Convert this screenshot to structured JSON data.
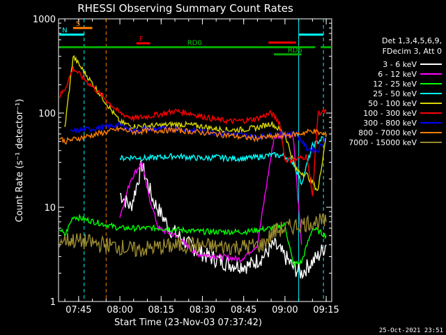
{
  "chart_data": {
    "type": "line",
    "title": "RHESSI Observing Summary Count Rates",
    "xlabel": "Start Time (23-Nov-03 07:37:42)",
    "ylabel": "Count Rate (s⁻¹ detector⁻¹)",
    "y_scale": "log",
    "ylim": [
      1,
      1000
    ],
    "xlim": [
      "07:37:42",
      "09:17:00"
    ],
    "x_ticks": [
      "07:45",
      "08:00",
      "08:15",
      "08:30",
      "08:45",
      "09:00",
      "09:15"
    ],
    "y_ticks": [
      "1",
      "10",
      "100",
      "1000"
    ],
    "grid": false,
    "legend_position": "right",
    "legend_header": [
      "Det 1,3,4,5,6,9,",
      "FDecim 3, Att 0"
    ],
    "footer_timestamp": "25-Oct-2021 23:51",
    "x_minutes_of_ticks": [
      7.3,
      22.3,
      37.3,
      52.3,
      67.3,
      82.3,
      97.3
    ],
    "series": [
      {
        "name": "3 - 6 keV",
        "color": "#ffffff",
        "x": [
          "08:00",
          "08:04",
          "08:08",
          "08:12",
          "08:18",
          "08:25",
          "08:32",
          "08:40",
          "08:47",
          "08:52",
          "08:56",
          "09:00",
          "09:03",
          "09:06",
          "09:09",
          "09:12",
          "09:15"
        ],
        "values": [
          14,
          10,
          28,
          12,
          6,
          4,
          3,
          2.5,
          2.4,
          3,
          4,
          3,
          2.3,
          2,
          2.5,
          3,
          4
        ]
      },
      {
        "name": "6 - 12 keV",
        "color": "#ff00ff",
        "x": [
          "08:00",
          "08:04",
          "08:08",
          "08:10",
          "08:14",
          "08:20",
          "08:28",
          "08:36",
          "08:44",
          "08:50",
          "08:53",
          "08:56",
          "09:00",
          "09:03",
          "09:06"
        ],
        "values": [
          8,
          20,
          30,
          15,
          6,
          5,
          3.2,
          3,
          2.8,
          4,
          15,
          55,
          60,
          58,
          4
        ]
      },
      {
        "name": "12 - 25 keV",
        "color": "#00ff00",
        "x": [
          "07:38",
          "07:40",
          "07:43",
          "08:00",
          "08:15",
          "08:30",
          "08:45",
          "08:55",
          "09:00",
          "09:03",
          "09:06",
          "09:10",
          "09:15"
        ],
        "values": [
          6,
          5,
          8,
          6,
          6,
          5.5,
          5.5,
          6,
          6.5,
          2.5,
          2.6,
          6,
          5
        ]
      },
      {
        "name": "25 - 50 keV",
        "color": "#00ffff",
        "x": [
          "08:00",
          "08:05",
          "08:10",
          "08:15",
          "08:20",
          "08:25",
          "08:30",
          "08:35",
          "08:40",
          "08:45",
          "08:50",
          "08:55",
          "09:00",
          "09:03",
          "09:06",
          "09:10",
          "09:14"
        ],
        "values": [
          33,
          34,
          33,
          34,
          35,
          34,
          33,
          34,
          33,
          33,
          34,
          36,
          35,
          30,
          18,
          45,
          55
        ]
      },
      {
        "name": "50 - 100 keV",
        "color": "#d8d800",
        "x": [
          "07:40",
          "07:43",
          "08:00",
          "08:05",
          "08:10",
          "08:15",
          "08:20",
          "08:25",
          "08:30",
          "08:35",
          "08:40",
          "08:45",
          "08:50",
          "08:55",
          "09:00",
          "09:04",
          "09:08",
          "09:12",
          "09:15"
        ],
        "values": [
          70,
          400,
          80,
          72,
          73,
          74,
          76,
          75,
          72,
          68,
          66,
          67,
          70,
          78,
          60,
          25,
          22,
          15,
          60
        ]
      },
      {
        "name": "100 - 300 keV",
        "color": "#ff0000",
        "x": [
          "07:38",
          "07:40",
          "07:43",
          "08:00",
          "08:05",
          "08:10",
          "08:15",
          "08:20",
          "08:25",
          "08:30",
          "08:35",
          "08:40",
          "08:45",
          "08:50",
          "08:55",
          "08:58",
          "09:00",
          "09:04",
          "09:08",
          "09:10",
          "09:12",
          "09:15"
        ],
        "values": [
          150,
          180,
          300,
          100,
          88,
          92,
          98,
          105,
          100,
          92,
          85,
          82,
          83,
          88,
          100,
          80,
          32,
          32,
          35,
          13,
          100,
          105
        ]
      },
      {
        "name": "300 - 800 keV",
        "color": "#0000ff",
        "x": [
          "07:42",
          "07:43",
          "08:00",
          "08:05",
          "08:10",
          "08:20",
          "08:30",
          "08:40",
          "08:45",
          "08:50",
          "08:55",
          "09:00",
          "09:04",
          "09:08",
          "09:12",
          "09:15"
        ],
        "values": [
          62,
          64,
          75,
          65,
          68,
          68,
          64,
          60,
          58,
          56,
          58,
          60,
          62,
          42,
          40,
          56
        ]
      },
      {
        "name": "800 - 7000 keV",
        "color": "#ff8000",
        "x": [
          "07:38",
          "07:40",
          "08:00",
          "08:05",
          "08:10",
          "08:20",
          "08:30",
          "08:40",
          "08:45",
          "08:50",
          "08:55",
          "09:00",
          "09:05",
          "09:10",
          "09:15"
        ],
        "values": [
          55,
          50,
          68,
          63,
          65,
          66,
          62,
          58,
          55,
          54,
          56,
          58,
          60,
          65,
          58
        ]
      },
      {
        "name": "7000 - 15000 keV",
        "color": "#9a8a30",
        "x": [
          "07:38",
          "07:42",
          "08:00",
          "08:05",
          "08:15",
          "08:25",
          "08:35",
          "08:45",
          "08:52",
          "08:56",
          "09:00",
          "09:05",
          "09:10",
          "09:15"
        ],
        "values": [
          4.5,
          4.5,
          3.8,
          3.5,
          3.8,
          4,
          3.8,
          3.8,
          4,
          5.5,
          6,
          6.5,
          7,
          7
        ]
      }
    ],
    "annotations": [
      {
        "label": "S",
        "color": "#ff8000",
        "x_start": "07:43",
        "x_end": "07:50",
        "y": 800
      },
      {
        "label": "N",
        "color": "#00ffff",
        "x_start": "07:38",
        "x_end": "07:47",
        "y": 680
      },
      {
        "label": "F",
        "color": "#ff0000",
        "x_start": "08:06",
        "x_end": "08:11",
        "y": 550
      },
      {
        "label": "",
        "color": "#ff0000",
        "x_start": "08:54",
        "x_end": "09:04",
        "y": 560
      },
      {
        "label": "",
        "color": "#00ffff",
        "x_start": "09:05",
        "x_end": "09:14",
        "y": 680
      },
      {
        "label": "RD0",
        "color": "#00aa00",
        "x_start": "07:38",
        "x_end": "09:11",
        "y": 500
      },
      {
        "label": "",
        "color": "#00aa00",
        "x_start": "09:13",
        "x_end": "09:17",
        "y": 500
      },
      {
        "label": "RD6",
        "color": "#00aa00",
        "x_start": "08:56",
        "x_end": "09:06",
        "y": 420
      }
    ],
    "vertical_markers": [
      {
        "x": "07:47",
        "color": "#00ffff",
        "style": "dashed"
      },
      {
        "x": "07:55",
        "color": "#ff8000",
        "style": "dashed"
      },
      {
        "x": "09:05",
        "color": "#00ffff",
        "style": "solid"
      },
      {
        "x": "09:14",
        "color": "#00ffff",
        "style": "dashed"
      }
    ]
  }
}
